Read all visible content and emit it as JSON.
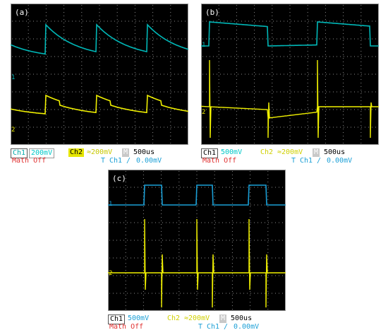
{
  "panels": [
    {
      "id": "a",
      "label": "(a)",
      "ch1_name": "Ch1",
      "ch1_scale": "200mV",
      "ch2_name": "Ch2",
      "ch2_scale": "≈200mV",
      "m_label": "M",
      "timebase": "500us",
      "math": "Math Off",
      "trigger_source": "Ch1",
      "trigger_level": "0.00mV",
      "ch1_color": "#00b8b8",
      "ch2_color": "#f0f000"
    },
    {
      "id": "b",
      "label": "(b)",
      "ch1_name": "Ch1",
      "ch1_scale": "500mV",
      "ch2_name": "Ch2",
      "ch2_scale": "≈200mV",
      "m_label": "M",
      "timebase": "500us",
      "math": "Math Off",
      "trigger_source": "Ch1",
      "trigger_level": "0.00mV",
      "ch1_color": "#00b8b8",
      "ch2_color": "#f0f000"
    },
    {
      "id": "c",
      "label": "(c)",
      "ch1_name": "Ch1",
      "ch1_scale": "500mV",
      "ch2_name": "Ch2",
      "ch2_scale": "≈200mV",
      "m_label": "M",
      "timebase": "500us",
      "math": "Math Off",
      "trigger_source": "Ch1",
      "trigger_level": "0.00mV",
      "ch1_color": "#1a9fd6",
      "ch2_color": "#f0f000"
    }
  ]
}
